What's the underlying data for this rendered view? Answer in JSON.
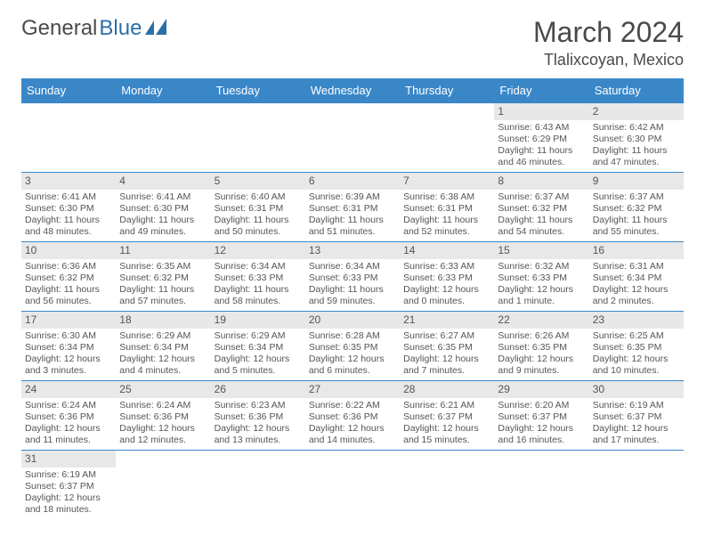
{
  "logo": {
    "text1": "General",
    "text2": "Blue",
    "color1": "#4a4a4a",
    "color2": "#2b6fa8"
  },
  "title": "March 2024",
  "location": "Tlalixcoyan, Mexico",
  "header_bg": "#3a87c8",
  "daynum_bg": "#e8e8e8",
  "row_border": "#3a87c8",
  "weekdays": [
    "Sunday",
    "Monday",
    "Tuesday",
    "Wednesday",
    "Thursday",
    "Friday",
    "Saturday"
  ],
  "weeks": [
    [
      null,
      null,
      null,
      null,
      null,
      {
        "n": "1",
        "sr": "Sunrise: 6:43 AM",
        "ss": "Sunset: 6:29 PM",
        "dl": "Daylight: 11 hours and 46 minutes."
      },
      {
        "n": "2",
        "sr": "Sunrise: 6:42 AM",
        "ss": "Sunset: 6:30 PM",
        "dl": "Daylight: 11 hours and 47 minutes."
      }
    ],
    [
      {
        "n": "3",
        "sr": "Sunrise: 6:41 AM",
        "ss": "Sunset: 6:30 PM",
        "dl": "Daylight: 11 hours and 48 minutes."
      },
      {
        "n": "4",
        "sr": "Sunrise: 6:41 AM",
        "ss": "Sunset: 6:30 PM",
        "dl": "Daylight: 11 hours and 49 minutes."
      },
      {
        "n": "5",
        "sr": "Sunrise: 6:40 AM",
        "ss": "Sunset: 6:31 PM",
        "dl": "Daylight: 11 hours and 50 minutes."
      },
      {
        "n": "6",
        "sr": "Sunrise: 6:39 AM",
        "ss": "Sunset: 6:31 PM",
        "dl": "Daylight: 11 hours and 51 minutes."
      },
      {
        "n": "7",
        "sr": "Sunrise: 6:38 AM",
        "ss": "Sunset: 6:31 PM",
        "dl": "Daylight: 11 hours and 52 minutes."
      },
      {
        "n": "8",
        "sr": "Sunrise: 6:37 AM",
        "ss": "Sunset: 6:32 PM",
        "dl": "Daylight: 11 hours and 54 minutes."
      },
      {
        "n": "9",
        "sr": "Sunrise: 6:37 AM",
        "ss": "Sunset: 6:32 PM",
        "dl": "Daylight: 11 hours and 55 minutes."
      }
    ],
    [
      {
        "n": "10",
        "sr": "Sunrise: 6:36 AM",
        "ss": "Sunset: 6:32 PM",
        "dl": "Daylight: 11 hours and 56 minutes."
      },
      {
        "n": "11",
        "sr": "Sunrise: 6:35 AM",
        "ss": "Sunset: 6:32 PM",
        "dl": "Daylight: 11 hours and 57 minutes."
      },
      {
        "n": "12",
        "sr": "Sunrise: 6:34 AM",
        "ss": "Sunset: 6:33 PM",
        "dl": "Daylight: 11 hours and 58 minutes."
      },
      {
        "n": "13",
        "sr": "Sunrise: 6:34 AM",
        "ss": "Sunset: 6:33 PM",
        "dl": "Daylight: 11 hours and 59 minutes."
      },
      {
        "n": "14",
        "sr": "Sunrise: 6:33 AM",
        "ss": "Sunset: 6:33 PM",
        "dl": "Daylight: 12 hours and 0 minutes."
      },
      {
        "n": "15",
        "sr": "Sunrise: 6:32 AM",
        "ss": "Sunset: 6:33 PM",
        "dl": "Daylight: 12 hours and 1 minute."
      },
      {
        "n": "16",
        "sr": "Sunrise: 6:31 AM",
        "ss": "Sunset: 6:34 PM",
        "dl": "Daylight: 12 hours and 2 minutes."
      }
    ],
    [
      {
        "n": "17",
        "sr": "Sunrise: 6:30 AM",
        "ss": "Sunset: 6:34 PM",
        "dl": "Daylight: 12 hours and 3 minutes."
      },
      {
        "n": "18",
        "sr": "Sunrise: 6:29 AM",
        "ss": "Sunset: 6:34 PM",
        "dl": "Daylight: 12 hours and 4 minutes."
      },
      {
        "n": "19",
        "sr": "Sunrise: 6:29 AM",
        "ss": "Sunset: 6:34 PM",
        "dl": "Daylight: 12 hours and 5 minutes."
      },
      {
        "n": "20",
        "sr": "Sunrise: 6:28 AM",
        "ss": "Sunset: 6:35 PM",
        "dl": "Daylight: 12 hours and 6 minutes."
      },
      {
        "n": "21",
        "sr": "Sunrise: 6:27 AM",
        "ss": "Sunset: 6:35 PM",
        "dl": "Daylight: 12 hours and 7 minutes."
      },
      {
        "n": "22",
        "sr": "Sunrise: 6:26 AM",
        "ss": "Sunset: 6:35 PM",
        "dl": "Daylight: 12 hours and 9 minutes."
      },
      {
        "n": "23",
        "sr": "Sunrise: 6:25 AM",
        "ss": "Sunset: 6:35 PM",
        "dl": "Daylight: 12 hours and 10 minutes."
      }
    ],
    [
      {
        "n": "24",
        "sr": "Sunrise: 6:24 AM",
        "ss": "Sunset: 6:36 PM",
        "dl": "Daylight: 12 hours and 11 minutes."
      },
      {
        "n": "25",
        "sr": "Sunrise: 6:24 AM",
        "ss": "Sunset: 6:36 PM",
        "dl": "Daylight: 12 hours and 12 minutes."
      },
      {
        "n": "26",
        "sr": "Sunrise: 6:23 AM",
        "ss": "Sunset: 6:36 PM",
        "dl": "Daylight: 12 hours and 13 minutes."
      },
      {
        "n": "27",
        "sr": "Sunrise: 6:22 AM",
        "ss": "Sunset: 6:36 PM",
        "dl": "Daylight: 12 hours and 14 minutes."
      },
      {
        "n": "28",
        "sr": "Sunrise: 6:21 AM",
        "ss": "Sunset: 6:37 PM",
        "dl": "Daylight: 12 hours and 15 minutes."
      },
      {
        "n": "29",
        "sr": "Sunrise: 6:20 AM",
        "ss": "Sunset: 6:37 PM",
        "dl": "Daylight: 12 hours and 16 minutes."
      },
      {
        "n": "30",
        "sr": "Sunrise: 6:19 AM",
        "ss": "Sunset: 6:37 PM",
        "dl": "Daylight: 12 hours and 17 minutes."
      }
    ],
    [
      {
        "n": "31",
        "sr": "Sunrise: 6:19 AM",
        "ss": "Sunset: 6:37 PM",
        "dl": "Daylight: 12 hours and 18 minutes."
      },
      null,
      null,
      null,
      null,
      null,
      null
    ]
  ]
}
